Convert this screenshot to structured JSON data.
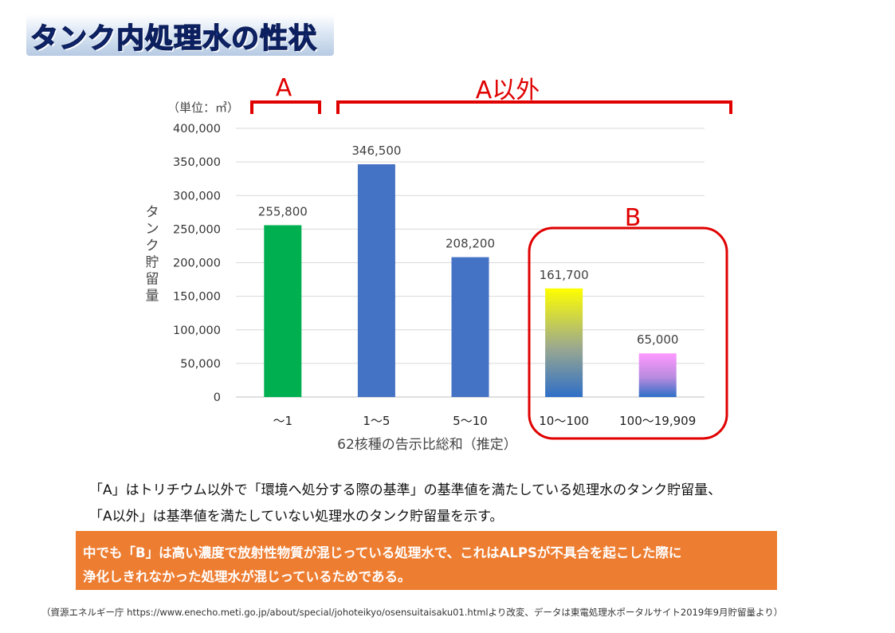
{
  "title": "タンク内処理水の性状",
  "chart_data": {
    "type": "bar",
    "unit_label": "（単位：㎥）",
    "ylabel": "タンク貯留量",
    "xlabel": "62核種の告示比総和（推定）",
    "categories": [
      "～1",
      "1～5",
      "5～10",
      "10～100",
      "100～19,909"
    ],
    "values": [
      255800,
      346500,
      208200,
      161700,
      65000
    ],
    "value_labels": [
      "255,800",
      "346,500",
      "208,200",
      "161,700",
      "65,000"
    ],
    "ylim": [
      0,
      400000
    ],
    "yticks": [
      "0",
      "50,000",
      "100,000",
      "150,000",
      "200,000",
      "250,000",
      "300,000",
      "350,000",
      "400,000"
    ],
    "grid": true,
    "bar_colors": [
      "#00b050",
      "#4472c4",
      "#4472c4",
      "gradient-yellow-blue",
      "gradient-pink-blue"
    ],
    "annotations": {
      "group_a": "A",
      "group_not_a": "A以外",
      "group_b": "B"
    },
    "annotation_color": "#e00000"
  },
  "notes": {
    "line1": "「A」はトリチウム以外で「環境へ処分する際の基準」の基準値を満たしている処理水のタンク貯留量、",
    "line2": "「A以外」は基準値を満たしていない処理水のタンク貯留量を示す。"
  },
  "highlight": {
    "line1": "中でも「B」は高い濃度で放射性物質が混じっている処理水で、これはALPSが不具合を起こした際に",
    "line2": "浄化しきれなかった処理水が混じっているためである。"
  },
  "source": "（資源エネルギー庁 https://www.enecho.meti.go.jp/about/special/johoteikyo/osensuitaisaku01.htmlより改変、データは東電処理水ポータルサイト2019年9月貯留量より）"
}
